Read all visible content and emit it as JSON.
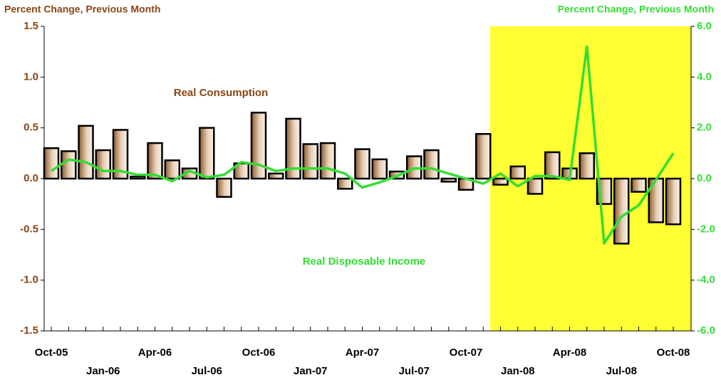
{
  "chart_data": {
    "type": "combo",
    "y_axis_title": "Percent Change, Previous Month",
    "y2_axis_title": "Percent Change, Previous Month",
    "categories": [
      "Oct-05",
      null,
      null,
      "Jan-06",
      null,
      null,
      "Apr-06",
      null,
      null,
      "Jul-06",
      null,
      null,
      "Oct-06",
      null,
      null,
      "Jan-07",
      null,
      null,
      "Apr-07",
      null,
      null,
      "Jul-07",
      null,
      null,
      "Oct-07",
      null,
      null,
      "Jan-08",
      null,
      null,
      "Apr-08",
      null,
      null,
      "Jul-08",
      null,
      null,
      "Oct-08"
    ],
    "series": [
      {
        "name": "Real Consumption",
        "type": "bar",
        "color": "#8b4513",
        "axis": "y",
        "values": [
          0.3,
          0.27,
          0.52,
          0.28,
          0.48,
          0.02,
          0.35,
          0.18,
          0.1,
          0.5,
          -0.18,
          0.15,
          0.65,
          0.05,
          0.59,
          0.34,
          0.35,
          -0.1,
          0.29,
          0.19,
          0.07,
          0.22,
          0.28,
          -0.03,
          -0.11,
          0.44,
          -0.06,
          0.12,
          -0.15,
          0.26,
          0.1,
          0.25,
          -0.25,
          -0.64,
          -0.13,
          -0.43,
          -0.45
        ]
      },
      {
        "name": "Real Disposable Income",
        "type": "line",
        "color": "#33dd33",
        "axis": "y2",
        "values": [
          0.3,
          0.75,
          0.65,
          0.3,
          0.3,
          0.15,
          0.15,
          -0.1,
          0.3,
          0.05,
          0.15,
          0.65,
          0.55,
          0.3,
          0.4,
          0.4,
          0.4,
          0.2,
          -0.35,
          -0.15,
          0.1,
          0.4,
          0.4,
          0.2,
          0.0,
          -0.2,
          0.2,
          -0.3,
          0.1,
          0.1,
          -0.05,
          5.2,
          -2.55,
          -1.5,
          -1.05,
          -0.05,
          1.0
        ]
      }
    ],
    "ylim": [
      -1.5,
      1.5
    ],
    "yticks": [
      -1.5,
      {
        "value": -1,
        "label": "-1.0"
      },
      -0.5,
      {
        "value": 0,
        "label": "0.0"
      },
      0.5,
      {
        "value": 1,
        "label": "1.0"
      },
      1.5
    ],
    "y2lim": [
      -6,
      6
    ],
    "y2ticks": [
      {
        "value": -6,
        "label": "-6.0"
      },
      {
        "value": -4,
        "label": "-4.0"
      },
      {
        "value": -2,
        "label": "-2.0"
      },
      {
        "value": 0,
        "label": "0.0"
      },
      {
        "value": 2,
        "label": "2.0"
      },
      {
        "value": 4,
        "label": "4.0"
      },
      {
        "value": 6,
        "label": "6.0"
      }
    ]
  }
}
